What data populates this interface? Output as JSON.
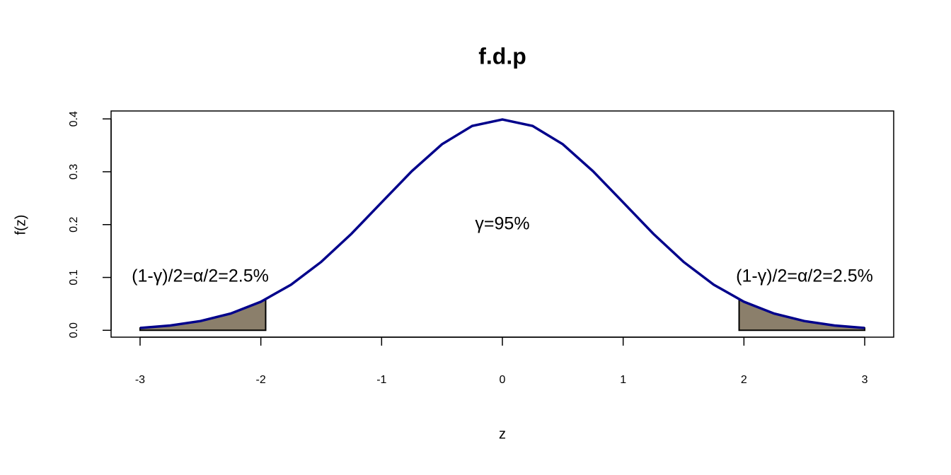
{
  "chart_data": {
    "type": "line",
    "title": "f.d.p",
    "x_label": "z",
    "y_label": "f(z)",
    "x": [
      -3,
      -2.75,
      -2.5,
      -2.25,
      -2,
      -1.75,
      -1.5,
      -1.25,
      -1,
      -0.75,
      -0.5,
      -0.25,
      0,
      0.25,
      0.5,
      0.75,
      1,
      1.25,
      1.5,
      1.75,
      2,
      2.25,
      2.5,
      2.75,
      3
    ],
    "series": [
      {
        "color": "#00008b",
        "values": [
          0.0044,
          0.0091,
          0.0175,
          0.0317,
          0.054,
          0.0863,
          0.1295,
          0.1826,
          0.242,
          0.3011,
          0.3521,
          0.3867,
          0.3989,
          0.3867,
          0.3521,
          0.3011,
          0.242,
          0.1826,
          0.1295,
          0.0863,
          0.054,
          0.0317,
          0.0175,
          0.0091,
          0.0044
        ]
      }
    ],
    "areas": [
      {
        "color": "#8b7f6b",
        "x": [
          -3,
          -2.75,
          -2.5,
          -2.25,
          -1.96
        ],
        "values": [
          0.0044,
          0.0091,
          0.0175,
          0.0317,
          0.0584
        ]
      },
      {
        "color": "#8b7f6b",
        "x": [
          1.96,
          2.25,
          2.5,
          2.75,
          3
        ],
        "values": [
          0.0584,
          0.0317,
          0.0175,
          0.0091,
          0.0044
        ]
      }
    ],
    "annotations": [
      "γ=95%",
      "(1-γ)/2=α/2=2.5%",
      "(1-γ)/2=α/2=2.5%"
    ],
    "xlim": [
      -3.24,
      3.24
    ],
    "ylim": [
      -0.013,
      0.415
    ],
    "xticks": [
      -3,
      -2,
      -1,
      0,
      1,
      2,
      3
    ],
    "yticks": [
      {
        "value": 0,
        "label": "0.0"
      },
      0.1,
      0.2,
      0.3,
      0.4
    ]
  }
}
